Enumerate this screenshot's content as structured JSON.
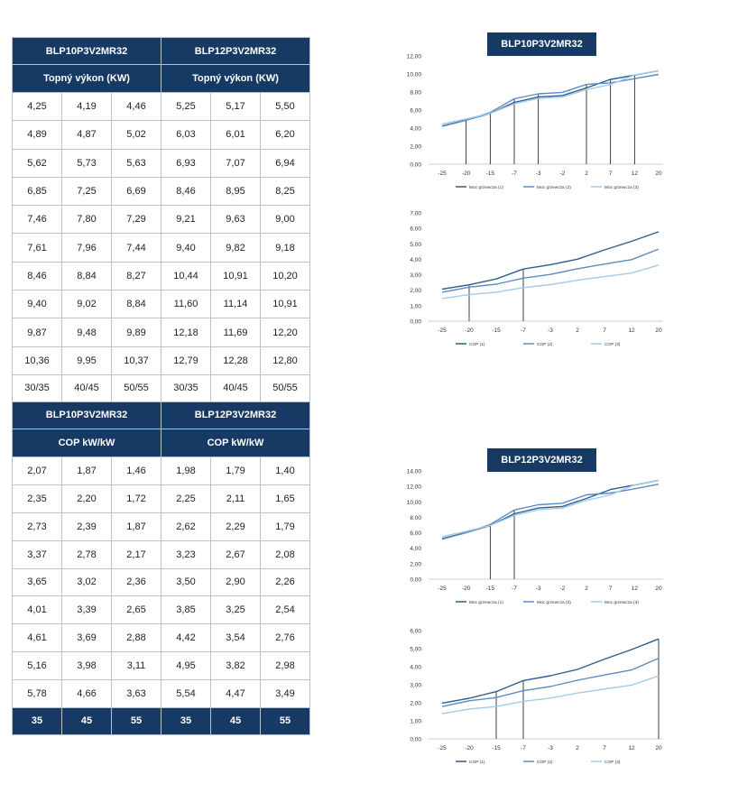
{
  "table": {
    "heat": {
      "models": [
        "BLP10P3V2MR32",
        "BLP12P3V2MR32"
      ],
      "subheader": "Topný výkon (KW)",
      "rows": [
        [
          "4,25",
          "4,19",
          "4,46",
          "5,25",
          "5,17",
          "5,50"
        ],
        [
          "4,89",
          "4,87",
          "5,02",
          "6,03",
          "6,01",
          "6,20"
        ],
        [
          "5,62",
          "5,73",
          "5,63",
          "6,93",
          "7,07",
          "6,94"
        ],
        [
          "6,85",
          "7,25",
          "6,69",
          "8,46",
          "8,95",
          "8,25"
        ],
        [
          "7,46",
          "7,80",
          "7,29",
          "9,21",
          "9,63",
          "9,00"
        ],
        [
          "7,61",
          "7,96",
          "7,44",
          "9,40",
          "9,82",
          "9,18"
        ],
        [
          "8,46",
          "8,84",
          "8,27",
          "10,44",
          "10,91",
          "10,20"
        ],
        [
          "9,40",
          "9,02",
          "8,84",
          "11,60",
          "11,14",
          "10,91"
        ],
        [
          "9,87",
          "9,48",
          "9,89",
          "12,18",
          "11,69",
          "12,20"
        ],
        [
          "10,36",
          "9,95",
          "10,37",
          "12,79",
          "12,28",
          "12,80"
        ]
      ],
      "temps": [
        "30/35",
        "40/45",
        "50/55",
        "30/35",
        "40/45",
        "50/55"
      ]
    },
    "cop": {
      "models": [
        "BLP10P3V2MR32",
        "BLP12P3V2MR32"
      ],
      "subheader": "COP kW/kW",
      "rows": [
        [
          "2,07",
          "1,87",
          "1,46",
          "1,98",
          "1,79",
          "1,40"
        ],
        [
          "2,35",
          "2,20",
          "1,72",
          "2,25",
          "2,11",
          "1,65"
        ],
        [
          "2,73",
          "2,39",
          "1,87",
          "2,62",
          "2,29",
          "1,79"
        ],
        [
          "3,37",
          "2,78",
          "2,17",
          "3,23",
          "2,67",
          "2,08"
        ],
        [
          "3,65",
          "3,02",
          "2,36",
          "3,50",
          "2,90",
          "2,26"
        ],
        [
          "4,01",
          "3,39",
          "2,65",
          "3,85",
          "3,25",
          "2,54"
        ],
        [
          "4,61",
          "3,69",
          "2,88",
          "4,42",
          "3,54",
          "2,76"
        ],
        [
          "5,16",
          "3,98",
          "3,11",
          "4,95",
          "3,82",
          "2,98"
        ],
        [
          "5,78",
          "4,66",
          "3,63",
          "5,54",
          "4,47",
          "3,49"
        ]
      ],
      "footer": [
        "35",
        "45",
        "55",
        "35",
        "45",
        "55"
      ]
    }
  },
  "chart_titles": [
    "BLP10P3V2MR32",
    "BLP12P3V2MR32"
  ],
  "colors": {
    "header": "#173a64",
    "s1": "#2e5e8e",
    "s2": "#5b8cc4",
    "s3": "#a6cbe6",
    "marker": "#111111"
  },
  "chart_data": [
    {
      "type": "line",
      "x": [
        "-25",
        "-20",
        "-15",
        "-7",
        "-3",
        "-2",
        "2",
        "7",
        "12",
        "20"
      ],
      "ylim": [
        0,
        12
      ],
      "yticks": [
        "0,00",
        "2,00",
        "4,00",
        "6,00",
        "8,00",
        "10,00",
        "12,00"
      ],
      "markers": [
        "-20",
        "-15",
        "-7",
        "-3",
        "2",
        "7",
        "12"
      ],
      "series": [
        {
          "name": "Moc grzewcza (1)",
          "values": [
            4.25,
            4.89,
            5.62,
            6.85,
            7.46,
            7.61,
            8.46,
            9.4,
            9.87,
            10.36
          ]
        },
        {
          "name": "Moc grzewcza (2)",
          "values": [
            4.19,
            4.87,
            5.73,
            7.25,
            7.8,
            7.96,
            8.84,
            9.02,
            9.48,
            9.95
          ]
        },
        {
          "name": "Moc grzewcza (3)",
          "values": [
            4.46,
            5.02,
            5.63,
            6.69,
            7.29,
            7.44,
            8.27,
            8.84,
            9.89,
            10.37
          ]
        }
      ]
    },
    {
      "type": "line",
      "x": [
        "-25",
        "-20",
        "-15",
        "-7",
        "-3",
        "2",
        "7",
        "12",
        "20"
      ],
      "ylim": [
        0,
        7
      ],
      "yticks": [
        "0,00",
        "1,00",
        "2,00",
        "3,00",
        "4,00",
        "5,00",
        "6,00",
        "7,00"
      ],
      "markers": [
        "-20",
        "-7"
      ],
      "series": [
        {
          "name": "COP (1)",
          "values": [
            2.07,
            2.35,
            2.73,
            3.37,
            3.65,
            4.01,
            4.61,
            5.16,
            5.78
          ]
        },
        {
          "name": "COP (2)",
          "values": [
            1.87,
            2.2,
            2.39,
            2.78,
            3.02,
            3.39,
            3.69,
            3.98,
            4.66
          ]
        },
        {
          "name": "COP (3)",
          "values": [
            1.46,
            1.72,
            1.87,
            2.17,
            2.36,
            2.65,
            2.88,
            3.11,
            3.63
          ]
        }
      ]
    },
    {
      "type": "line",
      "x": [
        "-25",
        "-20",
        "-15",
        "-7",
        "-3",
        "-2",
        "2",
        "7",
        "12",
        "20"
      ],
      "ylim": [
        0,
        14
      ],
      "yticks": [
        "0,00",
        "2,00",
        "4,00",
        "6,00",
        "8,00",
        "10,00",
        "12,00",
        "14,00"
      ],
      "markers": [
        "-15",
        "-7"
      ],
      "series": [
        {
          "name": "Moc grzewcza (1)",
          "values": [
            5.25,
            6.03,
            6.93,
            8.46,
            9.21,
            9.4,
            10.44,
            11.6,
            12.18,
            12.79
          ]
        },
        {
          "name": "Moc grzewcza (2)",
          "values": [
            5.17,
            6.01,
            7.07,
            8.95,
            9.63,
            9.82,
            10.91,
            11.14,
            11.69,
            12.28
          ]
        },
        {
          "name": "Moc grzewcza (3)",
          "values": [
            5.5,
            6.2,
            6.94,
            8.25,
            9.0,
            9.18,
            10.2,
            10.91,
            12.2,
            12.8
          ]
        }
      ]
    },
    {
      "type": "line",
      "x": [
        "-25",
        "-20",
        "-15",
        "-7",
        "-3",
        "2",
        "7",
        "12",
        "20"
      ],
      "ylim": [
        0,
        6
      ],
      "yticks": [
        "0,00",
        "1,00",
        "2,00",
        "3,00",
        "4,00",
        "5,00",
        "6,00"
      ],
      "markers": [
        "-15",
        "-7",
        "20"
      ],
      "series": [
        {
          "name": "COP (1)",
          "values": [
            1.98,
            2.25,
            2.62,
            3.23,
            3.5,
            3.85,
            4.42,
            4.95,
            5.54
          ]
        },
        {
          "name": "COP (2)",
          "values": [
            1.79,
            2.11,
            2.29,
            2.67,
            2.9,
            3.25,
            3.54,
            3.82,
            4.47
          ]
        },
        {
          "name": "COP (3)",
          "values": [
            1.4,
            1.65,
            1.79,
            2.08,
            2.26,
            2.54,
            2.76,
            2.98,
            3.49
          ]
        }
      ]
    }
  ]
}
